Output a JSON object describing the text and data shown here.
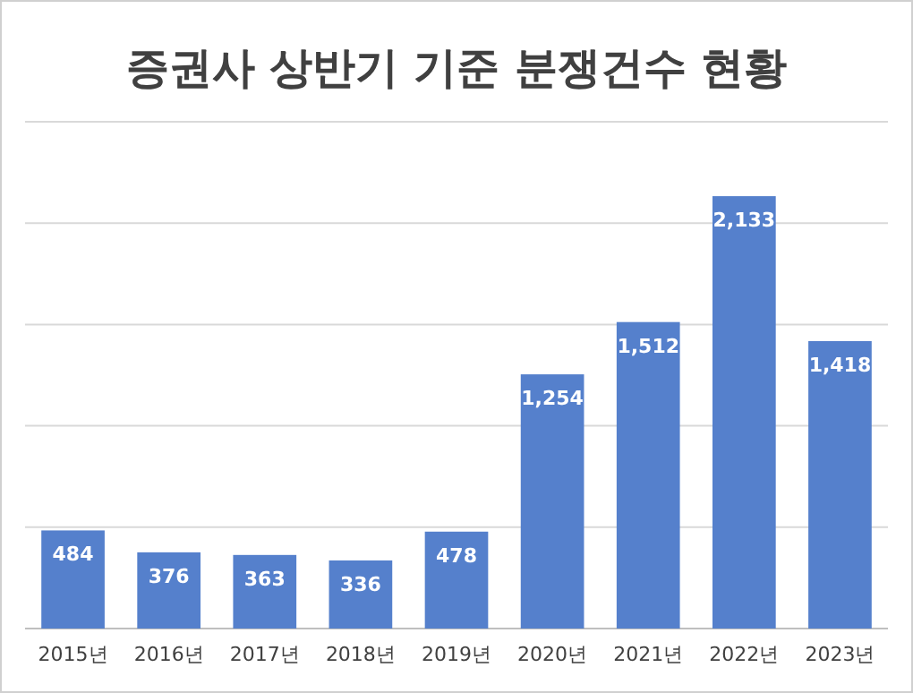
{
  "chart_data": {
    "type": "bar",
    "title": "증권사 상반기 기준 분쟁건수 현황",
    "categories": [
      "2015년",
      "2016년",
      "2017년",
      "2018년",
      "2019년",
      "2020년",
      "2021년",
      "2022년",
      "2023년"
    ],
    "values": [
      484,
      376,
      363,
      336,
      478,
      1254,
      1512,
      2133,
      1418
    ],
    "value_labels": [
      "484",
      "376",
      "363",
      "336",
      "478",
      "1,254",
      "1,512",
      "2,133",
      "1,418"
    ],
    "color": "#5580cc",
    "ylim": [
      0,
      2500
    ],
    "yticks": [
      0,
      500,
      1000,
      1500,
      2000,
      2500
    ],
    "tick_labels": "x",
    "grid": "y"
  }
}
